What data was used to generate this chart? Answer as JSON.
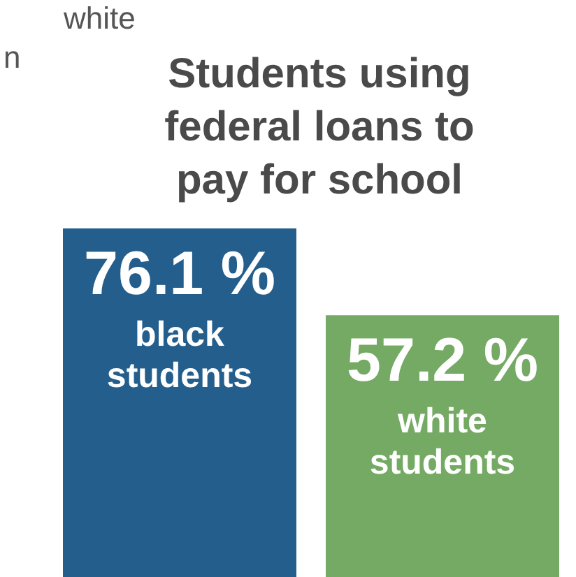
{
  "chart_data": {
    "type": "bar",
    "title": "Students using federal loans to pay for school",
    "categories": [
      "black students",
      "white students"
    ],
    "values": [
      76.1,
      57.2
    ],
    "colors": [
      "#245e8d",
      "#74aa63"
    ],
    "value_labels": [
      "76.1 %",
      "57.2 %"
    ],
    "annotations": [
      "white",
      "n"
    ]
  }
}
